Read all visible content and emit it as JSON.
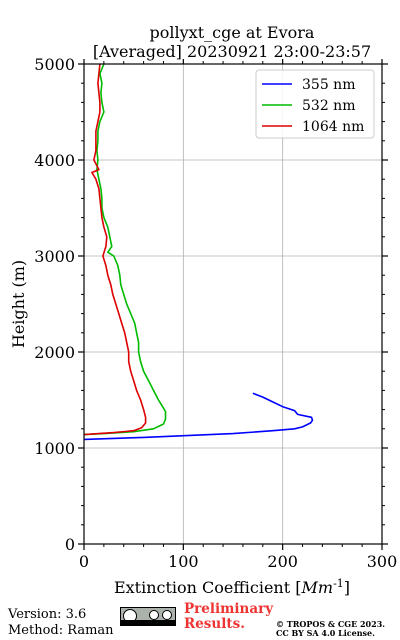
{
  "chart_data": {
    "type": "line",
    "title": [
      "pollyxt_cge at Evora",
      "[Averaged] 20230921 23:00-23:57"
    ],
    "xlabel": "Extinction Coefficient",
    "xlabel_unit": "Mm",
    "xlabel_unit_exp": "-1",
    "ylabel": "Height (m)",
    "xlim": [
      0,
      300
    ],
    "ylim": [
      0,
      5000
    ],
    "xticks": [
      0,
      100,
      200,
      300
    ],
    "yticks": [
      0,
      1000,
      2000,
      3000,
      4000,
      5000
    ],
    "grid": true,
    "legend_position": "top-right",
    "series": [
      {
        "name": "355 nm",
        "color": "#0000ff",
        "points": [
          [
            0,
            1090
          ],
          [
            60,
            1110
          ],
          [
            150,
            1150
          ],
          [
            190,
            1180
          ],
          [
            212,
            1200
          ],
          [
            220,
            1220
          ],
          [
            228,
            1260
          ],
          [
            230,
            1290
          ],
          [
            229,
            1320
          ],
          [
            215,
            1350
          ],
          [
            212,
            1390
          ],
          [
            200,
            1430
          ],
          [
            190,
            1480
          ],
          [
            180,
            1530
          ],
          [
            170,
            1570
          ]
        ]
      },
      {
        "name": "532 nm",
        "color": "#00bb00",
        "points": [
          [
            0,
            1140
          ],
          [
            20,
            1150
          ],
          [
            50,
            1170
          ],
          [
            70,
            1200
          ],
          [
            80,
            1250
          ],
          [
            82,
            1300
          ],
          [
            82,
            1380
          ],
          [
            78,
            1450
          ],
          [
            75,
            1500
          ],
          [
            70,
            1600
          ],
          [
            65,
            1700
          ],
          [
            60,
            1800
          ],
          [
            57,
            1900
          ],
          [
            55,
            2000
          ],
          [
            55,
            2100
          ],
          [
            53,
            2200
          ],
          [
            51,
            2300
          ],
          [
            47,
            2400
          ],
          [
            43,
            2500
          ],
          [
            40,
            2600
          ],
          [
            37,
            2700
          ],
          [
            36,
            2800
          ],
          [
            34,
            2900
          ],
          [
            30,
            3000
          ],
          [
            24,
            3040
          ],
          [
            28,
            3100
          ],
          [
            26,
            3200
          ],
          [
            24,
            3300
          ],
          [
            20,
            3400
          ],
          [
            18,
            3500
          ],
          [
            18,
            3600
          ],
          [
            17,
            3700
          ],
          [
            15,
            3800
          ],
          [
            13,
            3900
          ],
          [
            14,
            4000
          ],
          [
            13,
            4100
          ],
          [
            14,
            4200
          ],
          [
            14,
            4300
          ],
          [
            16,
            4400
          ],
          [
            20,
            4500
          ],
          [
            18,
            4600
          ],
          [
            17,
            4700
          ],
          [
            18,
            4800
          ],
          [
            16,
            4900
          ],
          [
            20,
            5000
          ]
        ]
      },
      {
        "name": "1064 nm",
        "color": "#dd0000",
        "points": [
          [
            0,
            1140
          ],
          [
            30,
            1160
          ],
          [
            50,
            1180
          ],
          [
            58,
            1210
          ],
          [
            62,
            1260
          ],
          [
            62,
            1320
          ],
          [
            60,
            1400
          ],
          [
            57,
            1500
          ],
          [
            53,
            1600
          ],
          [
            50,
            1700
          ],
          [
            47,
            1800
          ],
          [
            45,
            1900
          ],
          [
            45,
            2000
          ],
          [
            43,
            2100
          ],
          [
            41,
            2200
          ],
          [
            38,
            2300
          ],
          [
            35,
            2400
          ],
          [
            32,
            2500
          ],
          [
            29,
            2600
          ],
          [
            27,
            2700
          ],
          [
            24,
            2800
          ],
          [
            22,
            2900
          ],
          [
            19,
            3000
          ],
          [
            22,
            3100
          ],
          [
            23,
            3200
          ],
          [
            20,
            3300
          ],
          [
            18,
            3400
          ],
          [
            17,
            3500
          ],
          [
            16,
            3600
          ],
          [
            15,
            3700
          ],
          [
            12,
            3800
          ],
          [
            8,
            3870
          ],
          [
            15,
            3900
          ],
          [
            10,
            4000
          ],
          [
            12,
            4100
          ],
          [
            12,
            4200
          ],
          [
            12,
            4300
          ],
          [
            14,
            4400
          ],
          [
            16,
            4500
          ],
          [
            16,
            4600
          ],
          [
            15,
            4700
          ],
          [
            14,
            4800
          ],
          [
            15,
            4900
          ],
          [
            16,
            5000
          ]
        ]
      }
    ]
  },
  "footer": {
    "version": "Version: 3.6",
    "method": "Method: Raman",
    "preliminary_line1": "Preliminary",
    "preliminary_line2": "Results.",
    "copyright_line1": "© TROPOS & CGE 2023.",
    "copyright_line2": "CC BY SA 4.0 License.",
    "license_badge_icon": "cc-by-sa-badge-icon",
    "license_badge_text": "BY SA"
  }
}
